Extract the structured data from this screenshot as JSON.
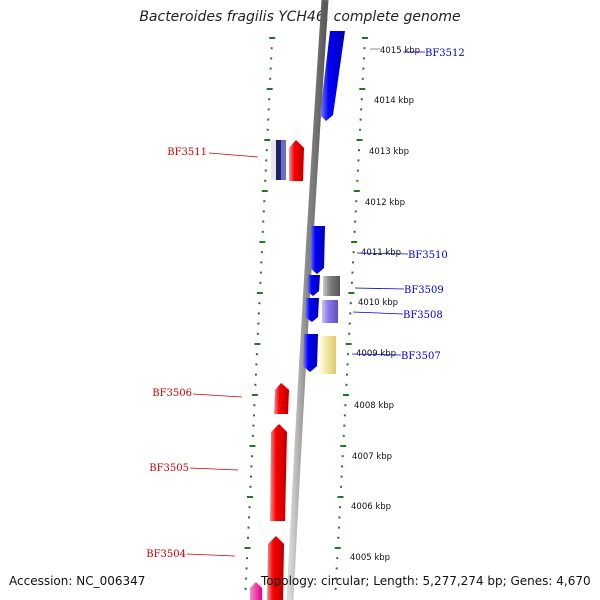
{
  "title": "Bacteroides fragilis YCH46, complete genome",
  "footer": {
    "accession": "Accession: NC_006347",
    "topology": "Topology: circular; Length: 5,277,274 bp; Genes: 4,670"
  },
  "colors": {
    "reverse_gene": "#ff0000",
    "forward_gene": "#0000ff",
    "tick": "#1f7a1f",
    "backbone": "#888888",
    "label_left": "#cc0000",
    "label_right": "#0000cc"
  },
  "kbp_marks": [
    "4015 kbp",
    "4014 kbp",
    "4013 kbp",
    "4012 kbp",
    "4011 kbp",
    "4010 kbp",
    "4009 kbp",
    "4008 kbp",
    "4007 kbp",
    "4006 kbp",
    "4005 kbp"
  ],
  "genes_left": [
    "BF3511",
    "BF3506",
    "BF3505",
    "BF3504"
  ],
  "genes_right": [
    "BF3512",
    "BF3510",
    "BF3509",
    "BF3508",
    "BF3507"
  ]
}
